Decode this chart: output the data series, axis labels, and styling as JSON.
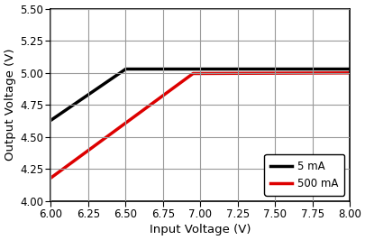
{
  "xlabel": "Input Voltage (V)",
  "ylabel": "Output Voltage (V)",
  "xlim": [
    6.0,
    8.0
  ],
  "ylim": [
    4.0,
    5.5
  ],
  "xticks": [
    6.0,
    6.25,
    6.5,
    6.75,
    7.0,
    7.25,
    7.5,
    7.75,
    8.0
  ],
  "yticks": [
    4.0,
    4.25,
    4.5,
    4.75,
    5.0,
    5.25,
    5.5
  ],
  "xtick_labels": [
    "6.00",
    "6.25",
    "6.50",
    "6.75",
    "7.00",
    "7.25",
    "7.50",
    "7.75",
    "8.00"
  ],
  "ytick_labels": [
    "4.00",
    "4.25",
    "4.50",
    "4.75",
    "5.00",
    "5.25",
    "5.50"
  ],
  "line1": {
    "label": "5 mA",
    "color": "#000000",
    "x": [
      6.0,
      6.5,
      8.0
    ],
    "y": [
      4.63,
      5.03,
      5.03
    ]
  },
  "line2": {
    "label": "500 mA",
    "color": "#dd0000",
    "x": [
      6.0,
      6.95,
      8.0
    ],
    "y": [
      4.18,
      4.995,
      5.0
    ]
  },
  "legend_loc": "lower right",
  "grid_color": "#999999",
  "linewidth": 2.5,
  "bg_color": "#ffffff",
  "xlabel_fontsize": 9.5,
  "ylabel_fontsize": 9.5,
  "tick_fontsize": 8.5
}
